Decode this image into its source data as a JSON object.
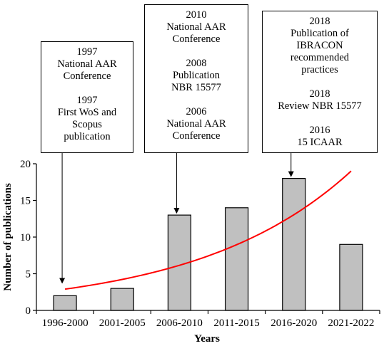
{
  "chart_data": {
    "type": "bar",
    "categories": [
      "1996-2000",
      "2001-2005",
      "2006-2010",
      "2011-2015",
      "2016-2020",
      "2021-2022"
    ],
    "values": [
      2,
      3,
      13,
      14,
      18,
      9
    ],
    "xlabel": "Years",
    "ylabel": "Number of publications",
    "ylim": [
      0,
      20
    ],
    "yticks": [
      0,
      5,
      10,
      15,
      20
    ],
    "grid": false,
    "bar_color": "#c0c0c0",
    "trend": {
      "type": "exponential",
      "color": "#ff0000",
      "start": {
        "category_index": 0,
        "value": 2.9
      },
      "end": {
        "category_index": 5,
        "value": 19
      }
    },
    "annotations": [
      {
        "category_index": 0,
        "entries": [
          [
            "1997",
            "National AAR",
            "Conference"
          ],
          [
            "1997",
            "First WoS and",
            "Scopus",
            "publication"
          ]
        ]
      },
      {
        "category_index": 2,
        "entries": [
          [
            "2010",
            "National AAR",
            "Conference"
          ],
          [
            "2008",
            "Publication",
            "NBR 15577"
          ],
          [
            "2006",
            "National AAR",
            "Conference"
          ]
        ]
      },
      {
        "category_index": 4,
        "entries": [
          [
            "2018",
            "Publication of",
            "IBRACON",
            "recommended",
            "practices"
          ],
          [
            "2018",
            "Review NBR 15577"
          ],
          [
            "2016",
            "15 ICAAR"
          ]
        ]
      }
    ]
  }
}
